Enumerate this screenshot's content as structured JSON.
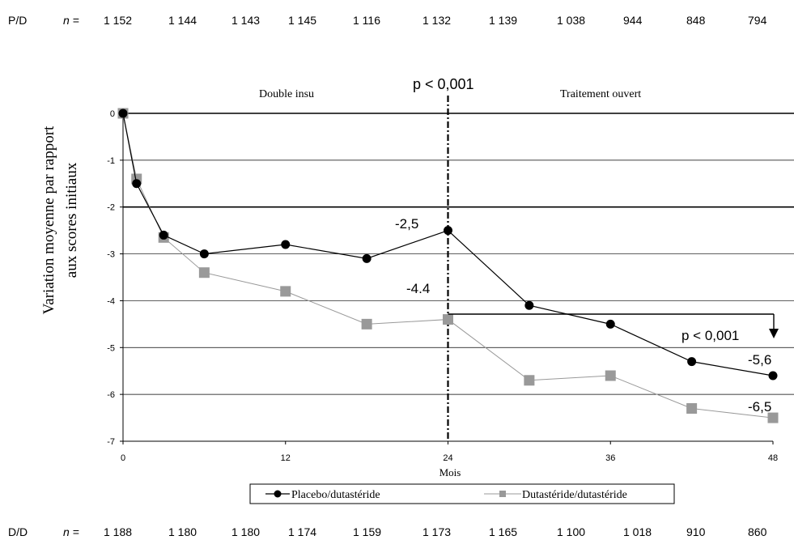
{
  "chart_data": {
    "type": "line",
    "ylabel_line1": "Variation moyenne par rapport",
    "ylabel_line2": "aux scores initiaux",
    "xlabel": "Mois",
    "xticks": [
      0,
      12,
      24,
      36,
      48
    ],
    "yticks": [
      0,
      -1,
      -2,
      -3,
      -4,
      -5,
      -6,
      -7
    ],
    "xlim": [
      0,
      48
    ],
    "ylim": [
      -7,
      0
    ],
    "phase_left": "Double insu",
    "phase_right": "Traitement  ouvert",
    "p_top": "p < 0,001",
    "p_right": "p < 0,001",
    "grid": true,
    "legend_position": "bottom",
    "series": [
      {
        "name": "Placebo/dutastéride",
        "color": "#000000",
        "marker": "circle",
        "x": [
          0,
          1,
          3,
          6,
          12,
          18,
          24,
          30,
          36,
          42,
          48
        ],
        "y": [
          0,
          -1.5,
          -2.6,
          -3.0,
          -2.8,
          -3.1,
          -2.5,
          -4.1,
          -4.5,
          -5.3,
          -5.6
        ]
      },
      {
        "name": "Dutastéride/dutastéride",
        "color": "#999999",
        "marker": "square",
        "x": [
          0,
          1,
          3,
          6,
          12,
          18,
          24,
          30,
          36,
          42,
          48
        ],
        "y": [
          0,
          -1.4,
          -2.65,
          -3.4,
          -3.8,
          -4.5,
          -4.4,
          -5.7,
          -5.6,
          -6.3,
          -6.5
        ]
      }
    ],
    "annotations": {
      "placebo_24": "-2,5",
      "dutasteride_24": "-4.4",
      "placebo_48": "-5,6",
      "dutasteride_48": "-6,5"
    },
    "top_row": {
      "label": "P/D",
      "n_label": "n =",
      "values": [
        "1 152",
        "1 144",
        "1 143",
        "1 145",
        "1 116",
        "1 132",
        "1 139",
        "1 038",
        "944",
        "848",
        "794"
      ]
    },
    "bottom_row": {
      "label": "D/D",
      "n_label": "n =",
      "values": [
        "1 188",
        "1 180",
        "1 180",
        "1 174",
        "1 159",
        "1 173",
        "1 165",
        "1 100",
        "1 018",
        "910",
        "860"
      ]
    }
  }
}
